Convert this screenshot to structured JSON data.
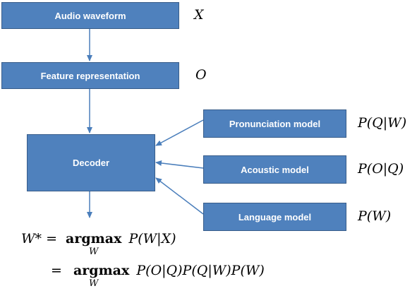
{
  "nodes": {
    "audio": {
      "label": "Audio waveform",
      "symbol": "X"
    },
    "feature": {
      "label": "Feature representation",
      "symbol": "O"
    },
    "decoder": {
      "label": "Decoder"
    },
    "pronunciation": {
      "label": "Pronunciation model",
      "symbol": "P(Q|W)"
    },
    "acoustic": {
      "label": "Acoustic model",
      "symbol": "P(O|Q)"
    },
    "language": {
      "label": "Language model",
      "symbol": "P(W)"
    }
  },
  "equation": {
    "line1_lhs": "W* =",
    "line1_op": "argmax",
    "line1_sub": "W",
    "line1_rhs": "P(W|X)",
    "line2_lhs": "=",
    "line2_op": "argmax",
    "line2_sub": "W",
    "line2_rhs": "P(O|Q)P(Q|W)P(W)"
  },
  "colors": {
    "box_fill": "#4f81bd",
    "box_border": "#385d8a",
    "arrow": "#4a7ebb"
  }
}
